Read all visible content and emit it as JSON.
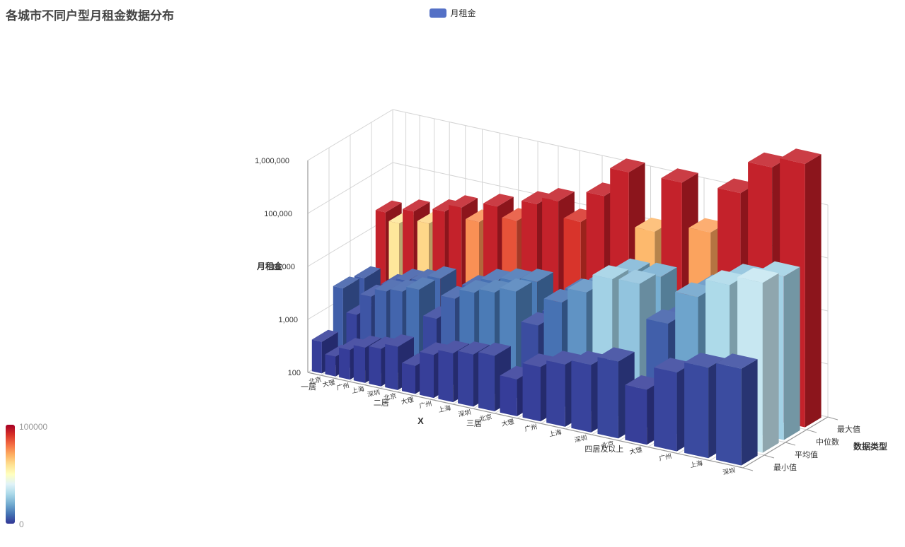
{
  "title": "各城市不同户型月租金数据分布",
  "legend": {
    "items": [
      {
        "label": "月租金",
        "color": "#5470c6"
      }
    ]
  },
  "visual_map": {
    "max_label": "100000",
    "min_label": "0",
    "min": 0,
    "max": 100000,
    "colors_low_to_high": [
      "#313695",
      "#4575b4",
      "#74add1",
      "#abd9e9",
      "#e0f3f8",
      "#ffffbf",
      "#fee090",
      "#fdae61",
      "#f46d43",
      "#d73027",
      "#a50026"
    ]
  },
  "chart_data": {
    "type": "bar",
    "subtype": "bar3d",
    "title": "各城市不同户型月租金数据分布",
    "series_name": "月租金",
    "x_axis": {
      "name": "X",
      "groups": [
        "一居",
        "二居",
        "三居",
        "四居及以上"
      ],
      "cities": [
        "北京",
        "大理",
        "广州",
        "上海",
        "深圳"
      ]
    },
    "y_axis": {
      "name": "数据类型",
      "categories": [
        "最小值",
        "平均值",
        "中位数",
        "最大值"
      ]
    },
    "z_axis": {
      "name": "月租金",
      "scale": "log",
      "min": 100,
      "max": 1000000,
      "tick_labels": [
        "100",
        "1,000",
        "10,000",
        "100,000",
        "1,000,000"
      ]
    },
    "rows": [
      {
        "name": "最小值",
        "values": [
          600,
          300,
          500,
          650,
          700,
          900,
          400,
          800,
          1000,
          1100,
          1200,
          500,
          1000,
          1300,
          1500,
          2000,
          800,
          1800,
          2500,
          2800
        ]
      },
      {
        "name": "平均值",
        "values": [
          6000,
          1500,
          4500,
          6500,
          7000,
          8500,
          2200,
          6500,
          9500,
          10500,
          12000,
          3000,
          9000,
          15000,
          28000,
          25000,
          6000,
          18000,
          30000,
          35000
        ]
      },
      {
        "name": "中位数",
        "values": [
          5200,
          1300,
          4000,
          5800,
          6200,
          7800,
          2000,
          6000,
          8800,
          9800,
          10500,
          2800,
          8200,
          13000,
          22000,
          20000,
          5000,
          15000,
          24000,
          28000
        ]
      },
      {
        "name": "最大值",
        "values": [
          105000,
          58000,
          115000,
          62000,
          120000,
          150000,
          75000,
          165000,
          85000,
          190000,
          220000,
          90000,
          280000,
          750000,
          68000,
          480000,
          72000,
          320000,
          800000,
          880000
        ]
      }
    ],
    "layout": {
      "grid": true,
      "legend_position": "top-center",
      "visual_map_position": "bottom-left"
    }
  }
}
